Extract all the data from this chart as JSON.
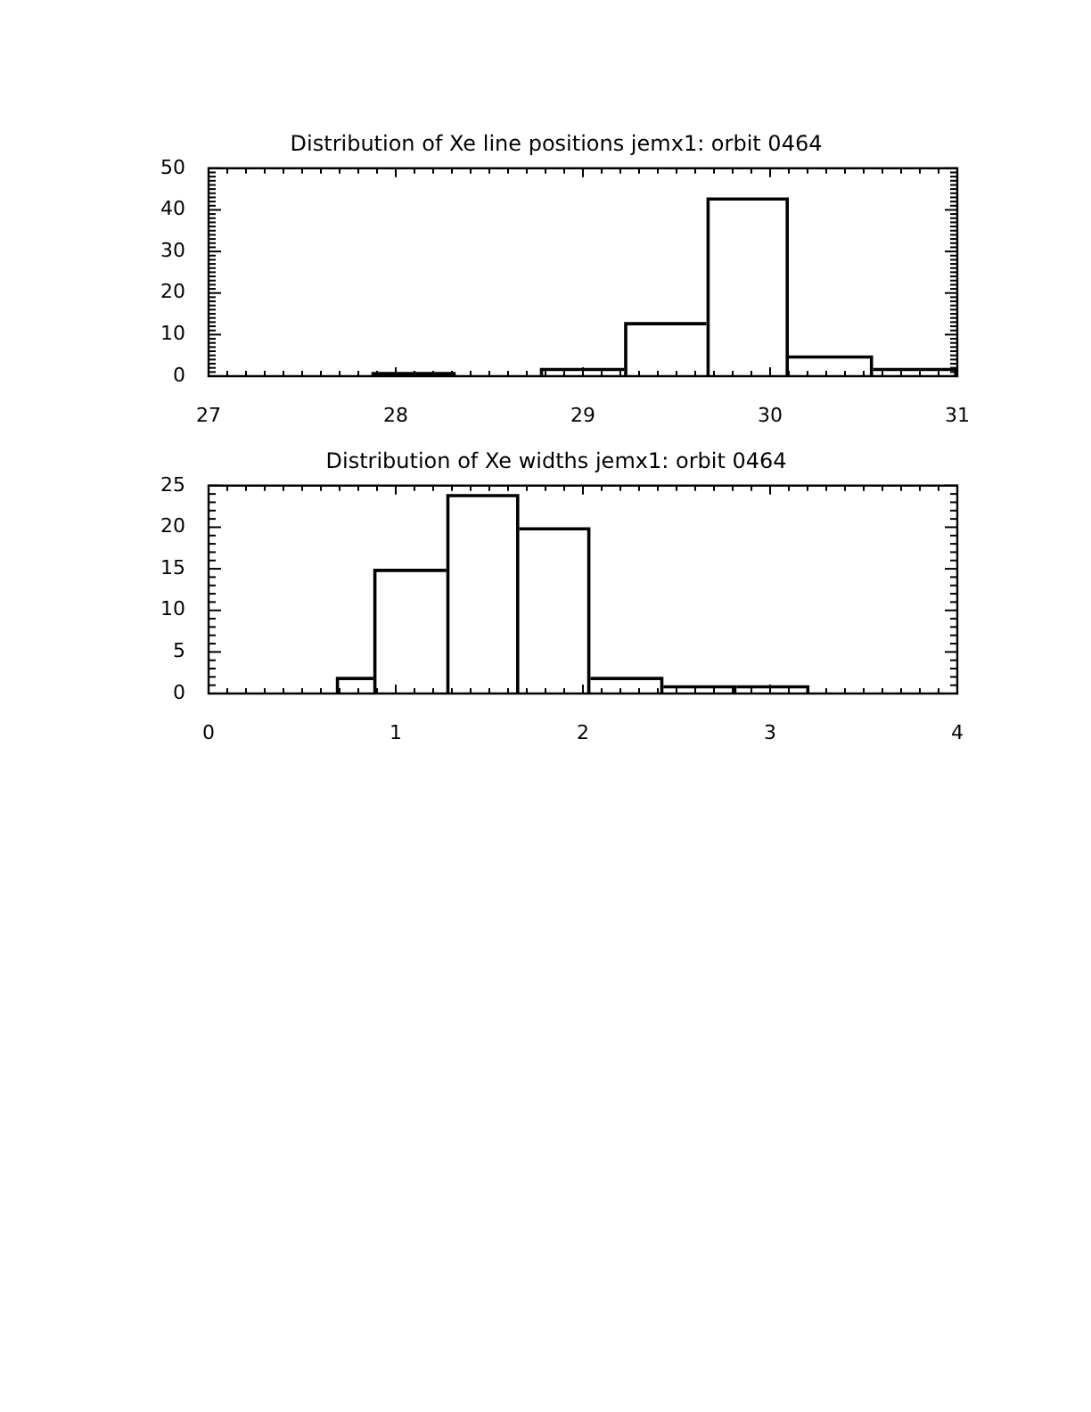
{
  "chart_data": [
    {
      "type": "histogram",
      "title": "Distribution of Xe line positions jemx1: orbit 0464",
      "bins": [
        27.87,
        28.32,
        28.77,
        29.22,
        29.66,
        30.1,
        30.55,
        31.0
      ],
      "values": [
        1,
        0,
        2,
        13,
        43,
        5,
        2
      ],
      "color": "#000000",
      "xlim": [
        27,
        31
      ],
      "ylim": [
        0,
        50
      ],
      "xticks": [
        27,
        {
          "value": 27.1,
          "label": null
        },
        {
          "value": 27.2,
          "label": null
        },
        {
          "value": 27.3,
          "label": null
        },
        {
          "value": 27.4,
          "label": null
        },
        {
          "value": 27.5,
          "label": null
        },
        {
          "value": 27.6,
          "label": null
        },
        {
          "value": 27.7,
          "label": null
        },
        {
          "value": 27.8,
          "label": null
        },
        {
          "value": 27.9,
          "label": null
        },
        28,
        {
          "value": 28.1,
          "label": null
        },
        {
          "value": 28.2,
          "label": null
        },
        {
          "value": 28.3,
          "label": null
        },
        {
          "value": 28.4,
          "label": null
        },
        {
          "value": 28.5,
          "label": null
        },
        {
          "value": 28.6,
          "label": null
        },
        {
          "value": 28.7,
          "label": null
        },
        {
          "value": 28.8,
          "label": null
        },
        {
          "value": 28.9,
          "label": null
        },
        29,
        {
          "value": 29.1,
          "label": null
        },
        {
          "value": 29.2,
          "label": null
        },
        {
          "value": 29.3,
          "label": null
        },
        {
          "value": 29.4,
          "label": null
        },
        {
          "value": 29.5,
          "label": null
        },
        {
          "value": 29.6,
          "label": null
        },
        {
          "value": 29.7,
          "label": null
        },
        {
          "value": 29.8,
          "label": null
        },
        {
          "value": 29.9,
          "label": null
        },
        30,
        {
          "value": 30.1,
          "label": null
        },
        {
          "value": 30.2,
          "label": null
        },
        {
          "value": 30.3,
          "label": null
        },
        {
          "value": 30.4,
          "label": null
        },
        {
          "value": 30.5,
          "label": null
        },
        {
          "value": 30.6,
          "label": null
        },
        {
          "value": 30.7,
          "label": null
        },
        {
          "value": 30.8,
          "label": null
        },
        {
          "value": 30.9,
          "label": null
        },
        31
      ],
      "yticks": [
        0,
        {
          "value": 1,
          "label": null
        },
        {
          "value": 2,
          "label": null
        },
        {
          "value": 3,
          "label": null
        },
        {
          "value": 4,
          "label": null
        },
        {
          "value": 5,
          "label": null
        },
        {
          "value": 6,
          "label": null
        },
        {
          "value": 7,
          "label": null
        },
        {
          "value": 8,
          "label": null
        },
        {
          "value": 9,
          "label": null
        },
        10,
        {
          "value": 11,
          "label": null
        },
        {
          "value": 12,
          "label": null
        },
        {
          "value": 13,
          "label": null
        },
        {
          "value": 14,
          "label": null
        },
        {
          "value": 15,
          "label": null
        },
        {
          "value": 16,
          "label": null
        },
        {
          "value": 17,
          "label": null
        },
        {
          "value": 18,
          "label": null
        },
        {
          "value": 19,
          "label": null
        },
        20,
        {
          "value": 21,
          "label": null
        },
        {
          "value": 22,
          "label": null
        },
        {
          "value": 23,
          "label": null
        },
        {
          "value": 24,
          "label": null
        },
        {
          "value": 25,
          "label": null
        },
        {
          "value": 26,
          "label": null
        },
        {
          "value": 27,
          "label": null
        },
        {
          "value": 28,
          "label": null
        },
        {
          "value": 29,
          "label": null
        },
        30,
        {
          "value": 31,
          "label": null
        },
        {
          "value": 32,
          "label": null
        },
        {
          "value": 33,
          "label": null
        },
        {
          "value": 34,
          "label": null
        },
        {
          "value": 35,
          "label": null
        },
        {
          "value": 36,
          "label": null
        },
        {
          "value": 37,
          "label": null
        },
        {
          "value": 38,
          "label": null
        },
        {
          "value": 39,
          "label": null
        },
        40,
        {
          "value": 41,
          "label": null
        },
        {
          "value": 42,
          "label": null
        },
        {
          "value": 43,
          "label": null
        },
        {
          "value": 44,
          "label": null
        },
        {
          "value": 45,
          "label": null
        },
        {
          "value": 46,
          "label": null
        },
        {
          "value": 47,
          "label": null
        },
        {
          "value": 48,
          "label": null
        },
        {
          "value": 49,
          "label": null
        },
        50
      ]
    },
    {
      "type": "histogram",
      "title": "Distribution of Xe widths jemx1: orbit 0464",
      "bins": [
        0.68,
        0.88,
        1.27,
        1.66,
        2.04,
        2.43,
        2.82,
        3.21
      ],
      "values": [
        2,
        15,
        24,
        20,
        2,
        1,
        1
      ],
      "color": "#000000",
      "xlim": [
        0,
        4
      ],
      "ylim": [
        0,
        25
      ],
      "xticks": [
        0,
        {
          "value": 0.1,
          "label": null
        },
        {
          "value": 0.2,
          "label": null
        },
        {
          "value": 0.3,
          "label": null
        },
        {
          "value": 0.4,
          "label": null
        },
        {
          "value": 0.5,
          "label": null
        },
        {
          "value": 0.6,
          "label": null
        },
        {
          "value": 0.7,
          "label": null
        },
        {
          "value": 0.8,
          "label": null
        },
        {
          "value": 0.9,
          "label": null
        },
        1,
        {
          "value": 1.1,
          "label": null
        },
        {
          "value": 1.2,
          "label": null
        },
        {
          "value": 1.3,
          "label": null
        },
        {
          "value": 1.4,
          "label": null
        },
        {
          "value": 1.5,
          "label": null
        },
        {
          "value": 1.6,
          "label": null
        },
        {
          "value": 1.7,
          "label": null
        },
        {
          "value": 1.8,
          "label": null
        },
        {
          "value": 1.9,
          "label": null
        },
        2,
        {
          "value": 2.1,
          "label": null
        },
        {
          "value": 2.2,
          "label": null
        },
        {
          "value": 2.3,
          "label": null
        },
        {
          "value": 2.4,
          "label": null
        },
        {
          "value": 2.5,
          "label": null
        },
        {
          "value": 2.6,
          "label": null
        },
        {
          "value": 2.7,
          "label": null
        },
        {
          "value": 2.8,
          "label": null
        },
        {
          "value": 2.9,
          "label": null
        },
        3,
        {
          "value": 3.1,
          "label": null
        },
        {
          "value": 3.2,
          "label": null
        },
        {
          "value": 3.3,
          "label": null
        },
        {
          "value": 3.4,
          "label": null
        },
        {
          "value": 3.5,
          "label": null
        },
        {
          "value": 3.6,
          "label": null
        },
        {
          "value": 3.7,
          "label": null
        },
        {
          "value": 3.8,
          "label": null
        },
        {
          "value": 3.9,
          "label": null
        },
        4
      ],
      "yticks": [
        0,
        {
          "value": 1,
          "label": null
        },
        {
          "value": 2,
          "label": null
        },
        {
          "value": 3,
          "label": null
        },
        {
          "value": 4,
          "label": null
        },
        5,
        {
          "value": 6,
          "label": null
        },
        {
          "value": 7,
          "label": null
        },
        {
          "value": 8,
          "label": null
        },
        {
          "value": 9,
          "label": null
        },
        10,
        {
          "value": 11,
          "label": null
        },
        {
          "value": 12,
          "label": null
        },
        {
          "value": 13,
          "label": null
        },
        {
          "value": 14,
          "label": null
        },
        15,
        {
          "value": 16,
          "label": null
        },
        {
          "value": 17,
          "label": null
        },
        {
          "value": 18,
          "label": null
        },
        {
          "value": 19,
          "label": null
        },
        20,
        {
          "value": 21,
          "label": null
        },
        {
          "value": 22,
          "label": null
        },
        {
          "value": 23,
          "label": null
        },
        {
          "value": 24,
          "label": null
        },
        25
      ]
    }
  ]
}
